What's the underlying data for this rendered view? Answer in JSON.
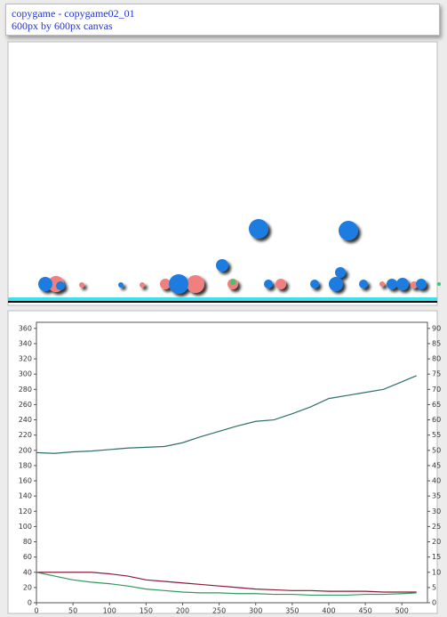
{
  "header": {
    "title": "copygame - copygame02_01",
    "subtitle": "600px by 600px canvas"
  },
  "chart_data": {
    "type": "line",
    "x": [
      0,
      25,
      50,
      75,
      100,
      125,
      150,
      175,
      200,
      225,
      250,
      275,
      300,
      325,
      350,
      375,
      400,
      425,
      450,
      475,
      500,
      520
    ],
    "series": [
      {
        "color": "#2e6f6a",
        "values": [
          197,
          196,
          198,
          199,
          201,
          203,
          204,
          205,
          210,
          218,
          225,
          232,
          238,
          240,
          248,
          257,
          268,
          272,
          276,
          280,
          290,
          298
        ]
      },
      {
        "color": "#8b1a3a",
        "values": [
          40,
          40,
          40,
          40,
          38,
          35,
          30,
          28,
          26,
          24,
          22,
          20,
          18,
          17,
          16,
          16,
          15,
          15,
          15,
          14,
          14,
          14
        ]
      },
      {
        "color": "#2f9a5a",
        "values": [
          40,
          35,
          30,
          27,
          25,
          22,
          18,
          16,
          14,
          13,
          13,
          12,
          12,
          11,
          11,
          10,
          10,
          10,
          11,
          11,
          12,
          13
        ]
      }
    ],
    "xlim": [
      0,
      535
    ],
    "xticks": [
      0,
      50,
      100,
      150,
      200,
      250,
      300,
      350,
      400,
      450,
      500
    ],
    "ylim": [
      0,
      368
    ],
    "yticks": [
      0,
      20,
      40,
      60,
      80,
      100,
      120,
      140,
      160,
      180,
      200,
      220,
      240,
      260,
      280,
      300,
      320,
      340,
      360
    ],
    "y2lim": [
      0,
      92
    ],
    "y2ticks": [
      0,
      5,
      10,
      15,
      20,
      25,
      30,
      35,
      40,
      45,
      50,
      55,
      60,
      65,
      70,
      75,
      80,
      85,
      90
    ]
  }
}
